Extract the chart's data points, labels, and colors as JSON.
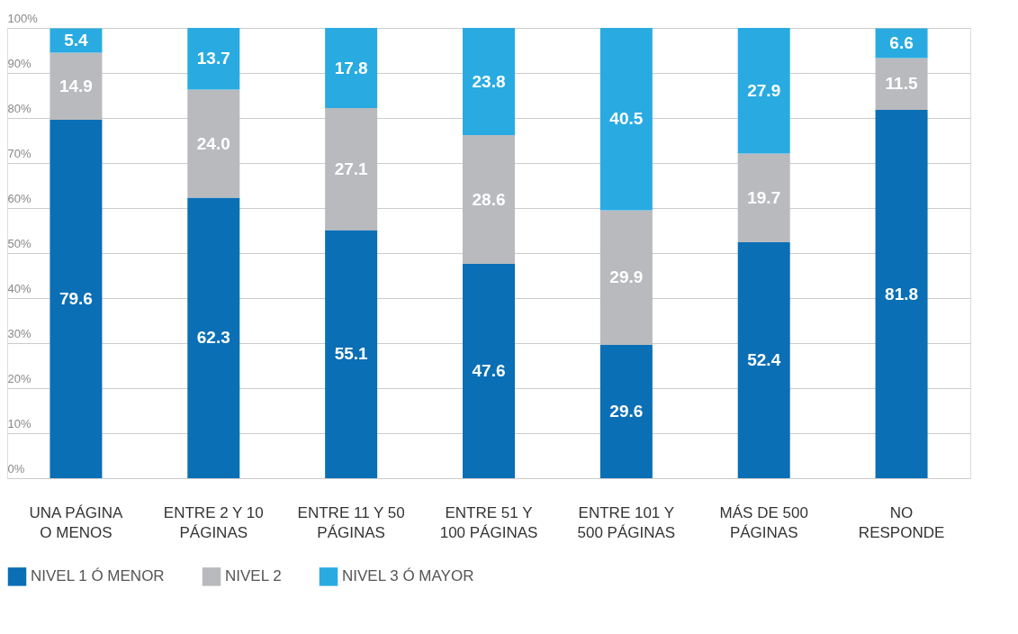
{
  "chart_data": {
    "type": "bar",
    "stacked": true,
    "grid": "y",
    "legend": "bottom left",
    "categories": [
      "UNA PÁGINA\nO MENOS",
      "ENTRE 2 Y 10\nPÁGINAS",
      "ENTRE 11 Y 50\nPÁGINAS",
      "ENTRE 51 Y\n100 PÁGINAS",
      "ENTRE 101 Y\n500 PÁGINAS",
      "MÁS DE 500\nPÁGINAS",
      "NO\nRESPONDE"
    ],
    "series": [
      {
        "name": "NIVEL 1 Ó MENOR",
        "color": "#0a6fb5",
        "values": [
          79.6,
          62.3,
          55.1,
          47.6,
          29.6,
          52.4,
          81.8
        ],
        "value_labels": [
          "79.6",
          "62.3",
          "55.1",
          "47.6",
          "29.6",
          "52.4",
          "81.8"
        ]
      },
      {
        "name": "NIVEL 2",
        "color": "#b9babe",
        "values": [
          14.9,
          24.0,
          27.1,
          28.6,
          29.9,
          19.7,
          11.5
        ],
        "value_labels": [
          "14.9",
          "24.0",
          "27.1",
          "28.6",
          "29.9",
          "19.7",
          "11.5"
        ]
      },
      {
        "name": "NIVEL 3 Ó MAYOR",
        "color": "#29abe2",
        "values": [
          5.4,
          13.7,
          17.8,
          23.8,
          40.5,
          27.9,
          6.6
        ],
        "value_labels": [
          "5.4",
          "13.7",
          "17.8",
          "23.8",
          "40.5",
          "27.9",
          "6.6"
        ]
      }
    ],
    "ylim": [
      0,
      100
    ],
    "yticks": [
      {
        "value": 0,
        "label": "0%"
      },
      {
        "value": 10,
        "label": "10%"
      },
      {
        "value": 20,
        "label": "20%"
      },
      {
        "value": 30,
        "label": "30%"
      },
      {
        "value": 40,
        "label": "40%"
      },
      {
        "value": 50,
        "label": "50%"
      },
      {
        "value": 60,
        "label": "60%"
      },
      {
        "value": 70,
        "label": "70%"
      },
      {
        "value": 80,
        "label": "80%"
      },
      {
        "value": 90,
        "label": "90%"
      },
      {
        "value": 100,
        "label": "100%"
      }
    ]
  }
}
